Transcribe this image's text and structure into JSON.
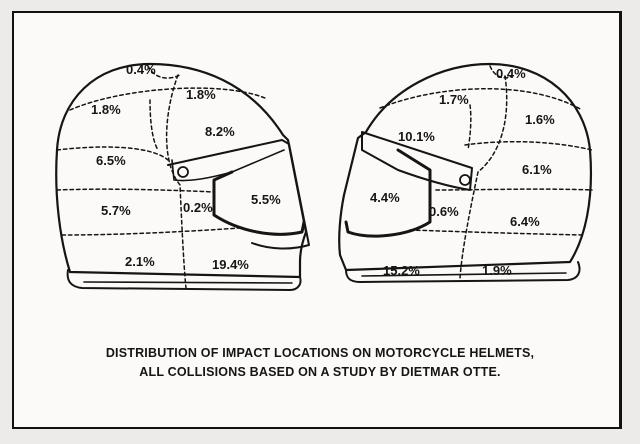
{
  "caption": {
    "line1": "DISTRIBUTION OF IMPACT LOCATIONS ON MOTORCYCLE HELMETS,",
    "line2": "ALL COLLISIONS BASED ON A STUDY BY DIETMAR OTTE."
  },
  "left_helmet": {
    "top_center": "0.4%",
    "upper_rear": "1.8%",
    "upper_front": "1.8%",
    "crown_front": "8.2%",
    "mid_rear": "6.5%",
    "visor": "5.5%",
    "lower_rear": "5.7%",
    "side": "0.2%",
    "base_rear": "2.1%",
    "chin": "19.4%"
  },
  "right_helmet": {
    "top_center": "0.4%",
    "upper_front": "1.7%",
    "upper_rear": "1.6%",
    "crown_front": "10.1%",
    "mid_rear": "6.1%",
    "visor": "4.4%",
    "side": "0.6%",
    "lower_rear": "6.4%",
    "chin": "15.2%",
    "base_rear": "1.9%"
  },
  "colors": {
    "ink": "#151515",
    "paper": "#fbfaf8",
    "background": "#ecebe9"
  }
}
